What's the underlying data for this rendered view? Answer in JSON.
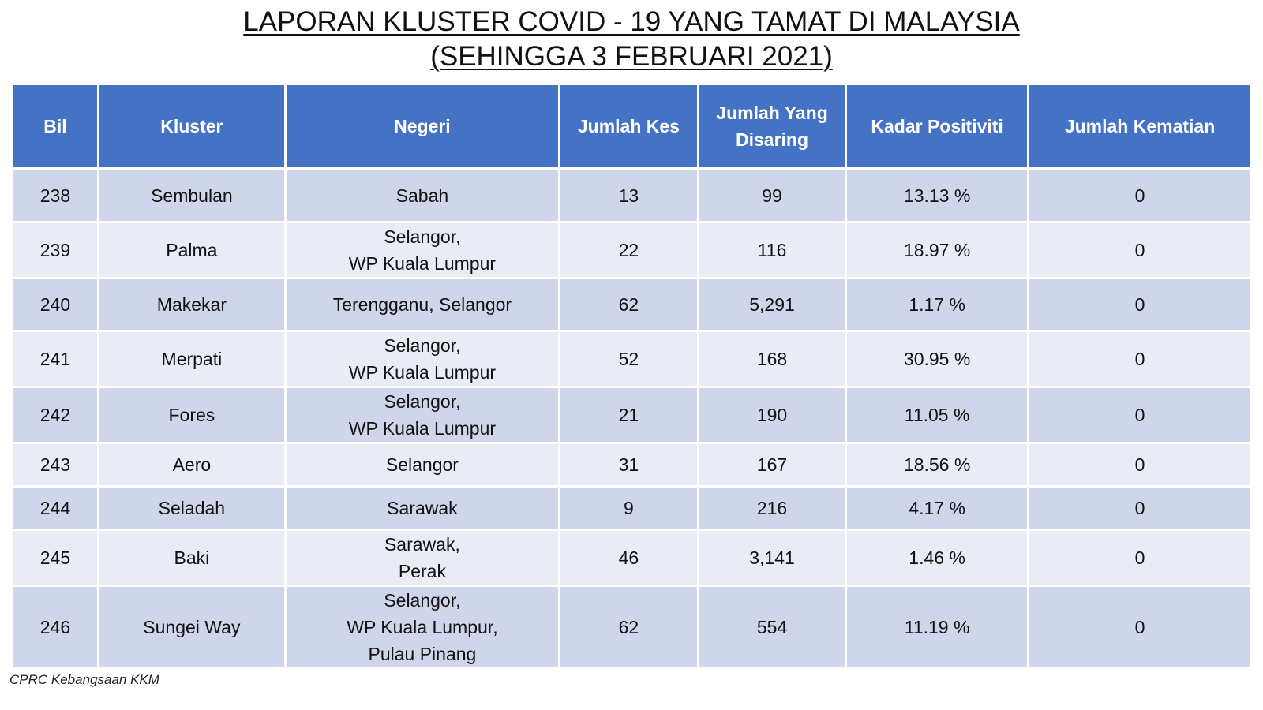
{
  "title": {
    "line1": "LAPORAN KLUSTER COVID - 19 YANG TAMAT DI MALAYSIA",
    "line2": "(SEHINGGA 3 FEBRUARI 2021)"
  },
  "table": {
    "headers": [
      "Bil",
      "Kluster",
      "Negeri",
      "Jumlah Kes",
      "Jumlah Yang Disaring",
      "Kadar Positiviti",
      "Jumlah Kematian"
    ],
    "header_lines": {
      "screened_1": "Jumlah Yang",
      "screened_2": "Disaring"
    },
    "rows": [
      {
        "bil": "238",
        "kluster": "Sembulan",
        "negeri": [
          "Sabah"
        ],
        "kes": "13",
        "disaring": "99",
        "positiviti": "13.13 %",
        "kematian": "0"
      },
      {
        "bil": "239",
        "kluster": "Palma",
        "negeri": [
          "Selangor,",
          "WP Kuala Lumpur"
        ],
        "kes": "22",
        "disaring": "116",
        "positiviti": "18.97 %",
        "kematian": "0"
      },
      {
        "bil": "240",
        "kluster": "Makekar",
        "negeri": [
          "Terengganu, Selangor"
        ],
        "kes": "62",
        "disaring": "5,291",
        "positiviti": "1.17 %",
        "kematian": "0"
      },
      {
        "bil": "241",
        "kluster": "Merpati",
        "negeri": [
          "Selangor,",
          "WP Kuala Lumpur"
        ],
        "kes": "52",
        "disaring": "168",
        "positiviti": "30.95 %",
        "kematian": "0"
      },
      {
        "bil": "242",
        "kluster": "Fores",
        "negeri": [
          "Selangor,",
          "WP Kuala Lumpur"
        ],
        "kes": "21",
        "disaring": "190",
        "positiviti": "11.05 %",
        "kematian": "0"
      },
      {
        "bil": "243",
        "kluster": "Aero",
        "negeri": [
          "Selangor"
        ],
        "kes": "31",
        "disaring": "167",
        "positiviti": "18.56 %",
        "kematian": "0"
      },
      {
        "bil": "244",
        "kluster": "Seladah",
        "negeri": [
          "Sarawak"
        ],
        "kes": "9",
        "disaring": "216",
        "positiviti": "4.17 %",
        "kematian": "0"
      },
      {
        "bil": "245",
        "kluster": "Baki",
        "negeri": [
          "Sarawak,",
          "Perak"
        ],
        "kes": "46",
        "disaring": "3,141",
        "positiviti": "1.46 %",
        "kematian": "0"
      },
      {
        "bil": "246",
        "kluster": "Sungei Way",
        "negeri": [
          "Selangor,",
          "WP Kuala Lumpur,",
          "Pulau Pinang"
        ],
        "kes": "62",
        "disaring": "554",
        "positiviti": "11.19 %",
        "kematian": "0"
      }
    ]
  },
  "footer": {
    "source": "CPRC Kebangsaan KKM"
  },
  "colors": {
    "header_bg": "#4472c4",
    "row_dark": "#cfd5ea",
    "row_light": "#e9ebf5"
  }
}
